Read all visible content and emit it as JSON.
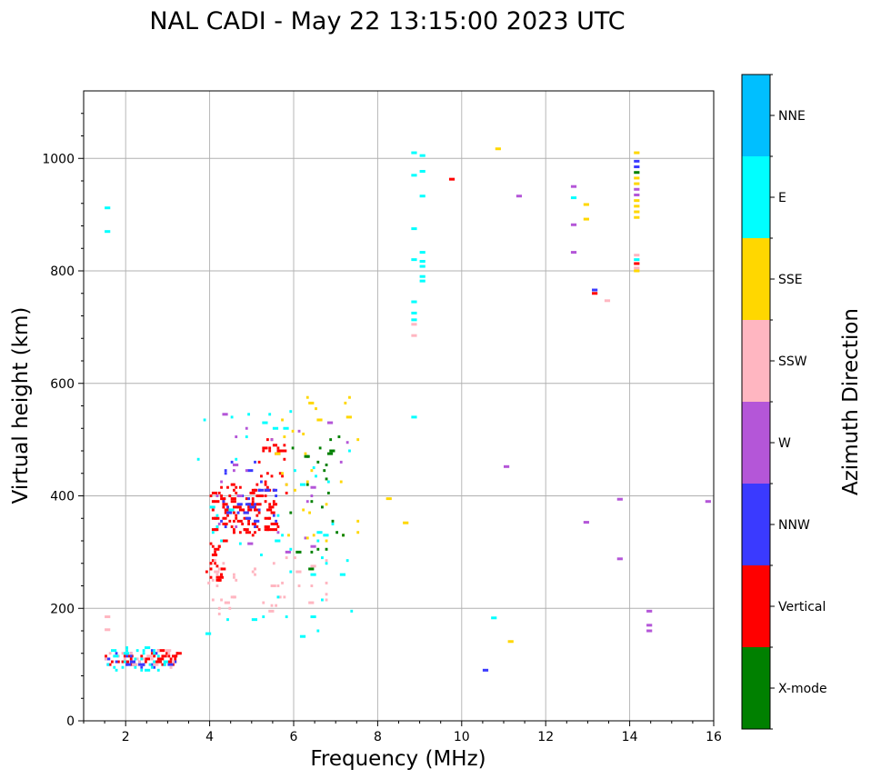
{
  "chart_data": {
    "type": "scatter",
    "title": "NAL CADI - May 22 13:15:00 2023 UTC",
    "xlabel": "Frequency (MHz)",
    "ylabel": "Virtual height (km)",
    "xlim": [
      1,
      16
    ],
    "ylim": [
      0,
      1120
    ],
    "xticks": [
      2,
      4,
      6,
      8,
      10,
      12,
      14,
      16
    ],
    "yticks": [
      0,
      200,
      400,
      600,
      800,
      1000
    ],
    "grid": true,
    "colorbar": {
      "label": "Azimuth Direction",
      "categories": [
        "X-mode",
        "Vertical",
        "NNW",
        "W",
        "SSW",
        "SSE",
        "E",
        "NNE"
      ],
      "colors": [
        "#008000",
        "#ff0000",
        "#3a3aff",
        "#b456d8",
        "#ffb6c1",
        "#ffd700",
        "#00ffff",
        "#00bfff"
      ]
    },
    "clusters": [
      {
        "category": "Vertical",
        "freq_range": [
          4.0,
          5.6
        ],
        "height_range": [
          330,
          420
        ],
        "count": 120
      },
      {
        "category": "Vertical",
        "freq_range": [
          3.9,
          4.3
        ],
        "height_range": [
          250,
          320
        ],
        "count": 30
      },
      {
        "category": "Vertical",
        "freq_range": [
          1.5,
          3.2
        ],
        "height_range": [
          100,
          125
        ],
        "count": 40
      },
      {
        "category": "Vertical",
        "freq_range": [
          5.0,
          5.8
        ],
        "height_range": [
          400,
          510
        ],
        "count": 25
      },
      {
        "category": "NNW",
        "freq_range": [
          4.2,
          5.6
        ],
        "height_range": [
          340,
          470
        ],
        "count": 35
      },
      {
        "category": "NNW",
        "freq_range": [
          1.5,
          3.2
        ],
        "height_range": [
          95,
          125
        ],
        "count": 25
      },
      {
        "category": "W",
        "freq_range": [
          4.0,
          7.3
        ],
        "height_range": [
          300,
          560
        ],
        "count": 25
      },
      {
        "category": "SSW",
        "freq_range": [
          3.8,
          6.8
        ],
        "height_range": [
          190,
          290
        ],
        "count": 45
      },
      {
        "category": "SSW",
        "freq_range": [
          1.5,
          3.2
        ],
        "height_range": [
          95,
          125
        ],
        "count": 20
      },
      {
        "category": "SSE",
        "freq_range": [
          5.5,
          7.6
        ],
        "height_range": [
          320,
          580
        ],
        "count": 30
      },
      {
        "category": "E",
        "freq_range": [
          3.6,
          7.4
        ],
        "height_range": [
          140,
          560
        ],
        "count": 50
      },
      {
        "category": "E",
        "freq_range": [
          1.5,
          3.2
        ],
        "height_range": [
          90,
          130
        ],
        "count": 30
      },
      {
        "category": "X-mode",
        "freq_range": [
          5.9,
          7.2
        ],
        "height_range": [
          270,
          510
        ],
        "count": 25
      }
    ],
    "points": [
      {
        "f": 1.5,
        "h": 912,
        "c": "E"
      },
      {
        "f": 1.5,
        "h": 870,
        "c": "E"
      },
      {
        "f": 1.5,
        "h": 185,
        "c": "SSW"
      },
      {
        "f": 1.5,
        "h": 162,
        "c": "SSW"
      },
      {
        "f": 8.2,
        "h": 395,
        "c": "SSE"
      },
      {
        "f": 8.6,
        "h": 352,
        "c": "SSE"
      },
      {
        "f": 8.8,
        "h": 1010,
        "c": "E"
      },
      {
        "f": 9.0,
        "h": 1005,
        "c": "E"
      },
      {
        "f": 8.8,
        "h": 970,
        "c": "E"
      },
      {
        "f": 9.0,
        "h": 977,
        "c": "E"
      },
      {
        "f": 9.7,
        "h": 963,
        "c": "Vertical"
      },
      {
        "f": 9.0,
        "h": 933,
        "c": "E"
      },
      {
        "f": 8.8,
        "h": 875,
        "c": "E"
      },
      {
        "f": 9.0,
        "h": 833,
        "c": "E"
      },
      {
        "f": 8.8,
        "h": 820,
        "c": "E"
      },
      {
        "f": 9.0,
        "h": 817,
        "c": "E"
      },
      {
        "f": 9.0,
        "h": 808,
        "c": "E"
      },
      {
        "f": 9.0,
        "h": 790,
        "c": "E"
      },
      {
        "f": 9.0,
        "h": 782,
        "c": "E"
      },
      {
        "f": 8.8,
        "h": 745,
        "c": "E"
      },
      {
        "f": 8.8,
        "h": 725,
        "c": "E"
      },
      {
        "f": 8.8,
        "h": 713,
        "c": "E"
      },
      {
        "f": 8.8,
        "h": 705,
        "c": "SSW"
      },
      {
        "f": 8.8,
        "h": 685,
        "c": "SSW"
      },
      {
        "f": 8.8,
        "h": 540,
        "c": "E"
      },
      {
        "f": 10.8,
        "h": 1017,
        "c": "SSE"
      },
      {
        "f": 11.3,
        "h": 933,
        "c": "W"
      },
      {
        "f": 11.0,
        "h": 452,
        "c": "W"
      },
      {
        "f": 10.7,
        "h": 183,
        "c": "E"
      },
      {
        "f": 11.1,
        "h": 141,
        "c": "SSE"
      },
      {
        "f": 10.5,
        "h": 90,
        "c": "NNW"
      },
      {
        "f": 12.6,
        "h": 950,
        "c": "W"
      },
      {
        "f": 12.6,
        "h": 930,
        "c": "E"
      },
      {
        "f": 12.9,
        "h": 918,
        "c": "SSE"
      },
      {
        "f": 12.9,
        "h": 892,
        "c": "SSE"
      },
      {
        "f": 12.6,
        "h": 882,
        "c": "W"
      },
      {
        "f": 12.6,
        "h": 833,
        "c": "W"
      },
      {
        "f": 13.1,
        "h": 766,
        "c": "NNW"
      },
      {
        "f": 13.1,
        "h": 760,
        "c": "Vertical"
      },
      {
        "f": 13.4,
        "h": 747,
        "c": "SSW"
      },
      {
        "f": 12.9,
        "h": 353,
        "c": "W"
      },
      {
        "f": 13.7,
        "h": 394,
        "c": "W"
      },
      {
        "f": 13.7,
        "h": 288,
        "c": "W"
      },
      {
        "f": 14.1,
        "h": 1010,
        "c": "SSE"
      },
      {
        "f": 14.1,
        "h": 995,
        "c": "NNW"
      },
      {
        "f": 14.1,
        "h": 985,
        "c": "NNW"
      },
      {
        "f": 14.1,
        "h": 975,
        "c": "X-mode"
      },
      {
        "f": 14.1,
        "h": 965,
        "c": "SSE"
      },
      {
        "f": 14.1,
        "h": 955,
        "c": "SSE"
      },
      {
        "f": 14.1,
        "h": 945,
        "c": "W"
      },
      {
        "f": 14.1,
        "h": 935,
        "c": "W"
      },
      {
        "f": 14.1,
        "h": 925,
        "c": "SSE"
      },
      {
        "f": 14.1,
        "h": 915,
        "c": "SSE"
      },
      {
        "f": 14.1,
        "h": 905,
        "c": "SSE"
      },
      {
        "f": 14.1,
        "h": 895,
        "c": "SSE"
      },
      {
        "f": 14.1,
        "h": 828,
        "c": "SSW"
      },
      {
        "f": 14.1,
        "h": 820,
        "c": "E"
      },
      {
        "f": 14.1,
        "h": 813,
        "c": "Vertical"
      },
      {
        "f": 14.1,
        "h": 805,
        "c": "SSW"
      },
      {
        "f": 14.1,
        "h": 800,
        "c": "SSE"
      },
      {
        "f": 14.4,
        "h": 195,
        "c": "W"
      },
      {
        "f": 14.4,
        "h": 170,
        "c": "W"
      },
      {
        "f": 14.4,
        "h": 160,
        "c": "W"
      },
      {
        "f": 15.8,
        "h": 390,
        "c": "W"
      }
    ]
  }
}
